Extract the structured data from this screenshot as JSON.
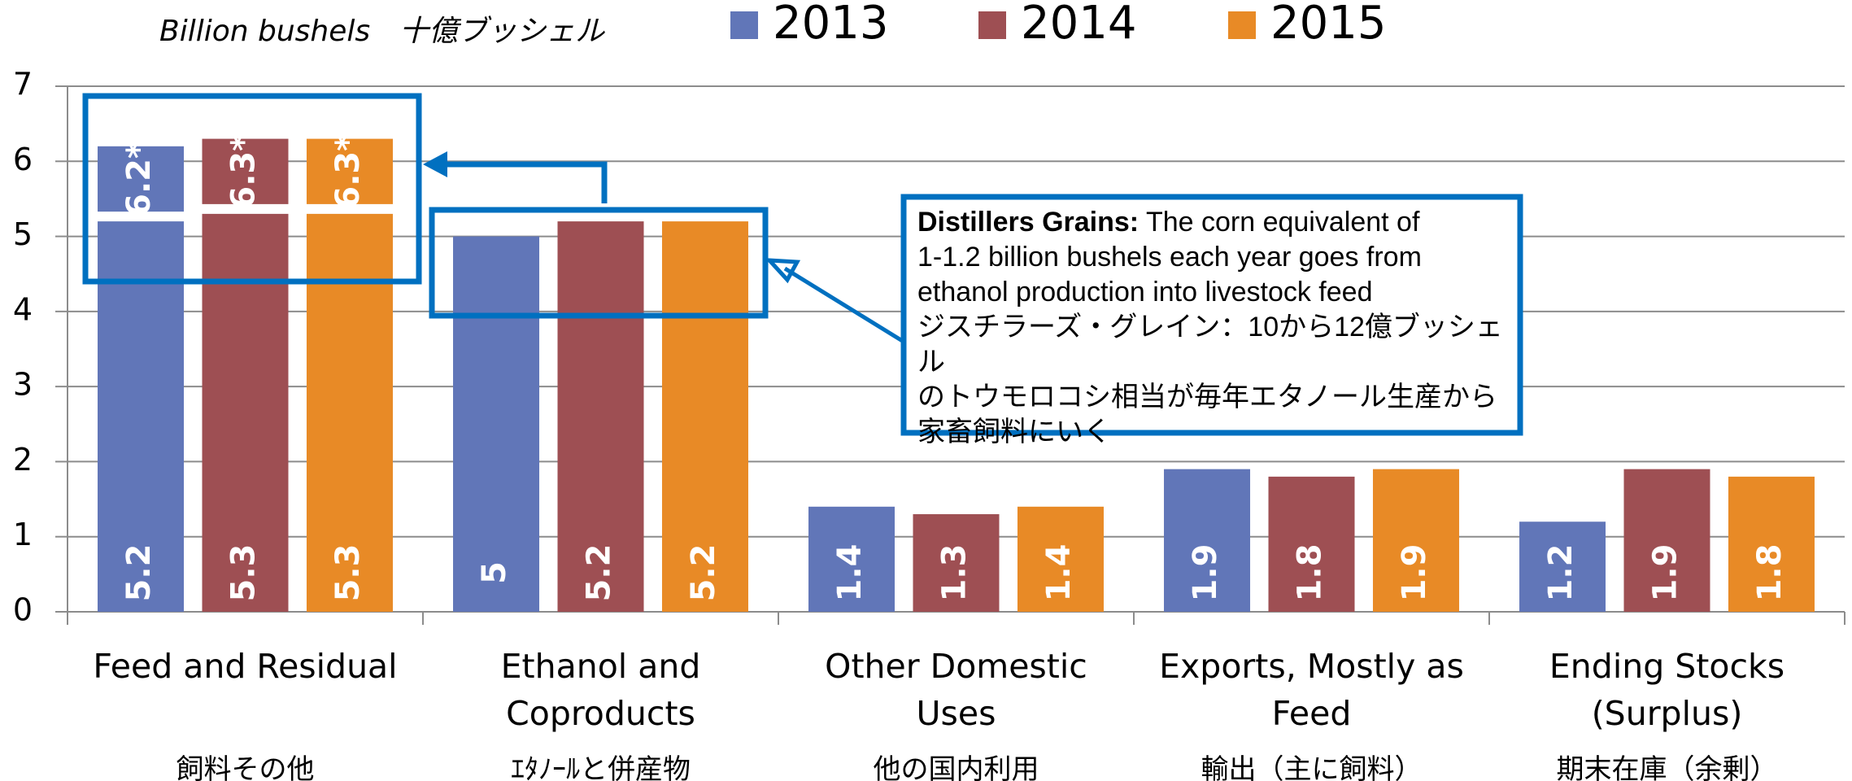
{
  "chart_data": {
    "type": "bar",
    "title": "Billion bushels　十億ブッシェル",
    "categories": [
      "Feed and Residual",
      "Ethanol and Coproducts",
      "Other Domestic Uses",
      "Exports, Mostly as Feed",
      "Ending Stocks (Surplus)"
    ],
    "categories_ja": [
      "飼料その他",
      "ｴﾀﾉｰﾙと併産物",
      "他の国内利用",
      "輸出（主に飼料）",
      "期末在庫（余剰）"
    ],
    "series": [
      {
        "name": "2013",
        "color": "#6176b8",
        "values": [
          5.2,
          5.0,
          1.4,
          1.9,
          1.2
        ]
      },
      {
        "name": "2014",
        "color": "#9e4f53",
        "values": [
          5.3,
          5.2,
          1.3,
          1.8,
          1.9
        ]
      },
      {
        "name": "2015",
        "color": "#e88a26",
        "values": [
          5.3,
          5.2,
          1.4,
          1.9,
          1.8
        ]
      }
    ],
    "feed_with_distillers": {
      "values": [
        6.2,
        6.3,
        6.3
      ],
      "value_labels": [
        "6.2*",
        "6.3*",
        "6.3*"
      ]
    },
    "ylim": [
      0,
      7
    ],
    "yticks": [
      0,
      1,
      2,
      3,
      4,
      5,
      6,
      7
    ],
    "grid": true,
    "legend": "top",
    "annotation": {
      "heading": "Distillers Grains:",
      "lines": [
        "The corn equivalent of",
        "1-1.2 billion bushels each year goes from",
        "ethanol production into livestock feed",
        "ジスチラーズ・グレイン：10から12億ブッシェル",
        "のトウモロコシ相当が毎年エタノール生産から",
        "家畜飼料にいく"
      ]
    }
  }
}
